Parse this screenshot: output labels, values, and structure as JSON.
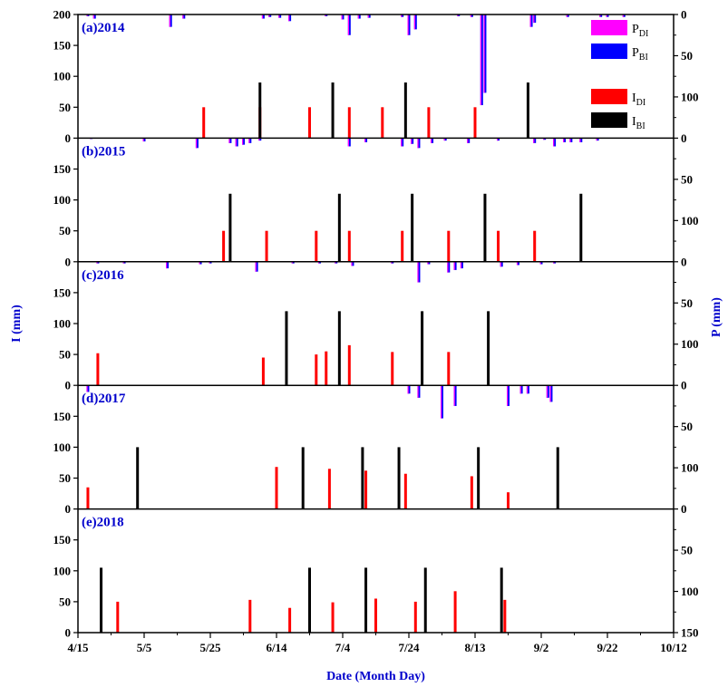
{
  "chart_data": {
    "type": "bar",
    "xlabel": "Date (Month Day)",
    "ylabel_left": "I (mm)",
    "ylabel_right": "P (mm)",
    "x_ticks": [
      "4/15",
      "5/5",
      "5/25",
      "6/14",
      "7/4",
      "7/24",
      "8/13",
      "9/2",
      "9/22",
      "10/12"
    ],
    "x_tick_days": [
      0,
      20,
      40,
      60,
      80,
      100,
      120,
      140,
      160,
      180
    ],
    "left_ticks_top": [
      0,
      50,
      100,
      150,
      200
    ],
    "left_ticks": [
      0,
      50,
      100,
      150
    ],
    "ylim_left": [
      0,
      200
    ],
    "right_ticks_top": [
      0,
      50,
      100
    ],
    "right_ticks": [
      0,
      50,
      100
    ],
    "right_ticks_bottom": [
      0,
      50,
      100,
      150
    ],
    "ylim_right": [
      0,
      150
    ],
    "legend": {
      "precip": [
        {
          "label": "P",
          "sub": "DI",
          "color": "#ff00ff"
        },
        {
          "label": "P",
          "sub": "BI",
          "color": "#0000ff"
        }
      ],
      "irrigation": [
        {
          "label": "I",
          "sub": "DI",
          "color": "#ff0000"
        },
        {
          "label": "I",
          "sub": "BI",
          "color": "#000000"
        }
      ]
    },
    "panels": [
      {
        "label": "(a)2014",
        "I_DI": [
          [
            38,
            50
          ],
          [
            55,
            50
          ],
          [
            70,
            50
          ],
          [
            82,
            50
          ],
          [
            92,
            50
          ],
          [
            106,
            50
          ],
          [
            120,
            50
          ]
        ],
        "I_BI": [
          [
            55,
            90
          ],
          [
            77,
            90
          ],
          [
            99,
            90
          ],
          [
            136,
            90
          ]
        ],
        "P": [
          [
            3,
            2
          ],
          [
            5,
            5
          ],
          [
            28,
            15
          ],
          [
            32,
            5
          ],
          [
            56,
            5
          ],
          [
            58,
            3
          ],
          [
            61,
            4
          ],
          [
            64,
            8
          ],
          [
            75,
            2
          ],
          [
            80,
            6
          ],
          [
            82,
            25
          ],
          [
            85,
            5
          ],
          [
            88,
            4
          ],
          [
            98,
            3
          ],
          [
            100,
            25
          ],
          [
            102,
            18
          ],
          [
            115,
            2
          ],
          [
            119,
            3
          ],
          [
            122,
            110
          ],
          [
            123,
            95
          ],
          [
            137,
            15
          ],
          [
            138,
            10
          ],
          [
            148,
            3
          ],
          [
            158,
            3
          ],
          [
            160,
            3
          ],
          [
            165,
            3
          ]
        ]
      },
      {
        "label": "(b)2015",
        "I_DI": [
          [
            44,
            50
          ],
          [
            57,
            50
          ],
          [
            72,
            50
          ],
          [
            82,
            50
          ],
          [
            98,
            50
          ],
          [
            112,
            50
          ],
          [
            127,
            50
          ],
          [
            138,
            50
          ]
        ],
        "I_BI": [
          [
            46,
            110
          ],
          [
            79,
            110
          ],
          [
            101,
            110
          ],
          [
            123,
            110
          ],
          [
            152,
            110
          ]
        ],
        "P": [
          [
            4,
            1
          ],
          [
            20,
            4
          ],
          [
            36,
            12
          ],
          [
            46,
            6
          ],
          [
            48,
            10
          ],
          [
            50,
            8
          ],
          [
            52,
            6
          ],
          [
            55,
            3
          ],
          [
            82,
            10
          ],
          [
            87,
            5
          ],
          [
            98,
            10
          ],
          [
            101,
            7
          ],
          [
            103,
            12
          ],
          [
            107,
            6
          ],
          [
            111,
            3
          ],
          [
            118,
            6
          ],
          [
            127,
            3
          ],
          [
            138,
            6
          ],
          [
            141,
            2
          ],
          [
            144,
            10
          ],
          [
            147,
            5
          ],
          [
            149,
            5
          ],
          [
            152,
            5
          ],
          [
            157,
            3
          ]
        ]
      },
      {
        "label": "(c)2016",
        "I_DI": [
          [
            6,
            52
          ],
          [
            56,
            45
          ],
          [
            72,
            50
          ],
          [
            75,
            55
          ],
          [
            82,
            65
          ],
          [
            95,
            54
          ],
          [
            112,
            54
          ]
        ],
        "I_BI": [
          [
            63,
            120
          ],
          [
            79,
            120
          ],
          [
            104,
            120
          ],
          [
            124,
            120
          ]
        ],
        "P": [
          [
            6,
            2
          ],
          [
            14,
            2
          ],
          [
            27,
            8
          ],
          [
            37,
            3
          ],
          [
            40,
            2
          ],
          [
            54,
            12
          ],
          [
            65,
            2
          ],
          [
            73,
            2
          ],
          [
            78,
            2
          ],
          [
            83,
            5
          ],
          [
            95,
            2
          ],
          [
            103,
            25
          ],
          [
            106,
            3
          ],
          [
            112,
            13
          ],
          [
            114,
            10
          ],
          [
            116,
            8
          ],
          [
            128,
            6
          ],
          [
            133,
            4
          ],
          [
            140,
            3
          ],
          [
            144,
            2
          ]
        ]
      },
      {
        "label": "(d)2017",
        "I_DI": [
          [
            3,
            35
          ],
          [
            60,
            68
          ],
          [
            76,
            65
          ],
          [
            87,
            62
          ],
          [
            99,
            57
          ],
          [
            119,
            53
          ],
          [
            130,
            27
          ]
        ],
        "I_BI": [
          [
            18,
            100
          ],
          [
            68,
            100
          ],
          [
            86,
            100
          ],
          [
            97,
            100
          ],
          [
            121,
            100
          ],
          [
            145,
            100
          ]
        ],
        "P": [
          [
            3,
            8
          ],
          [
            100,
            10
          ],
          [
            103,
            15
          ],
          [
            110,
            40
          ],
          [
            114,
            25
          ],
          [
            130,
            25
          ],
          [
            134,
            10
          ],
          [
            136,
            10
          ],
          [
            142,
            15
          ],
          [
            143,
            20
          ]
        ]
      },
      {
        "label": "(e)2018",
        "I_DI": [
          [
            12,
            50
          ],
          [
            52,
            53
          ],
          [
            64,
            40
          ],
          [
            77,
            49
          ],
          [
            90,
            55
          ],
          [
            102,
            50
          ],
          [
            114,
            67
          ],
          [
            129,
            53
          ]
        ],
        "I_BI": [
          [
            7,
            105
          ],
          [
            70,
            105
          ],
          [
            87,
            105
          ],
          [
            105,
            105
          ],
          [
            128,
            105
          ]
        ],
        "P": []
      }
    ]
  }
}
